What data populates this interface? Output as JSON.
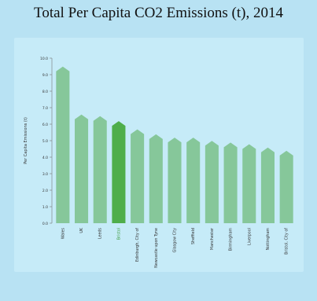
{
  "chart_data": {
    "type": "bar",
    "title": "Total Per Capita CO2 Emissions (t), 2014",
    "ylabel": "Per Capita Emissions (t)",
    "xlabel": "",
    "ylim": [
      0,
      10
    ],
    "yticks": [
      0,
      1,
      2,
      3,
      4,
      5,
      6,
      7,
      8,
      9,
      10
    ],
    "ytick_labels": [
      "0.0",
      "1.0",
      "2.0",
      "3.0",
      "4.0",
      "5.0",
      "6.0",
      "7.0",
      "8.0",
      "9.0",
      "10.0"
    ],
    "categories": [
      "Wales",
      "UK",
      "Leeds",
      "Bristol",
      "Edinburgh, City of",
      "Newcastle upon Tyne",
      "Glasgow City",
      "Sheffield",
      "Manchester",
      "Birmingham",
      "Liverpool",
      "Nottingham",
      "Bristol, City of"
    ],
    "values": [
      9.2,
      6.3,
      6.2,
      5.9,
      5.4,
      5.1,
      4.9,
      4.9,
      4.7,
      4.6,
      4.5,
      4.3,
      4.1
    ],
    "highlight_index": 3,
    "colors": {
      "bar": "#86c79a",
      "highlight": "#4fae4b",
      "highlight_label": "#3e9b3f",
      "label": "#333333",
      "axis": "#777777"
    },
    "grid": false
  }
}
